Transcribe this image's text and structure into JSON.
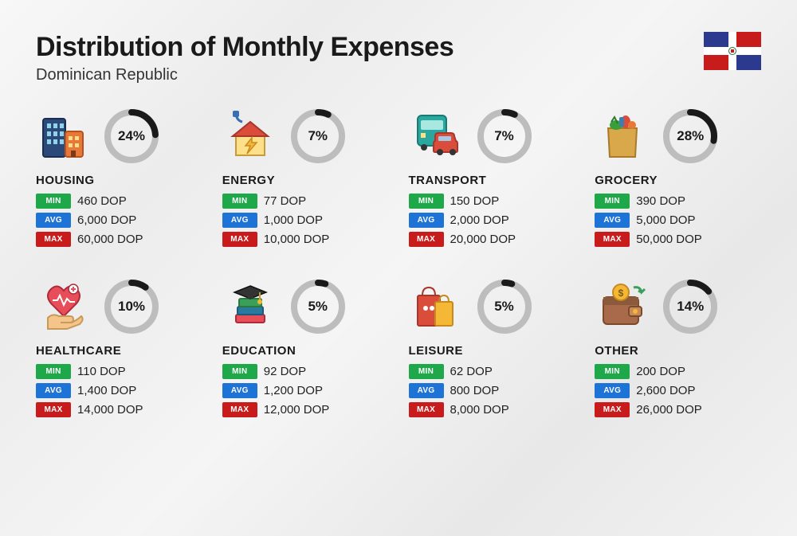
{
  "title": "Distribution of Monthly Expenses",
  "subtitle": "Dominican Republic",
  "currency": "DOP",
  "badge_labels": {
    "min": "MIN",
    "avg": "AVG",
    "max": "MAX"
  },
  "ring": {
    "radius": 30,
    "stroke_width": 8,
    "bg_color": "#bdbdbd",
    "fg_color": "#1a1a1a",
    "circumference": 188.5
  },
  "badge_colors": {
    "min": "#1fa84a",
    "avg": "#1e73d6",
    "max": "#c81c1c"
  },
  "flag": {
    "blue": "#2b3a8f",
    "red": "#c81c1c",
    "white": "#ffffff"
  },
  "categories": [
    {
      "key": "housing",
      "name": "HOUSING",
      "pct": 24,
      "min": "460",
      "avg": "6,000",
      "max": "60,000",
      "icon": "buildings"
    },
    {
      "key": "energy",
      "name": "ENERGY",
      "pct": 7,
      "min": "77",
      "avg": "1,000",
      "max": "10,000",
      "icon": "energy-house"
    },
    {
      "key": "transport",
      "name": "TRANSPORT",
      "pct": 7,
      "min": "150",
      "avg": "2,000",
      "max": "20,000",
      "icon": "bus-car"
    },
    {
      "key": "grocery",
      "name": "GROCERY",
      "pct": 28,
      "min": "390",
      "avg": "5,000",
      "max": "50,000",
      "icon": "grocery-bag"
    },
    {
      "key": "healthcare",
      "name": "HEALTHCARE",
      "pct": 10,
      "min": "110",
      "avg": "1,400",
      "max": "14,000",
      "icon": "heart-hand"
    },
    {
      "key": "education",
      "name": "EDUCATION",
      "pct": 5,
      "min": "92",
      "avg": "1,200",
      "max": "12,000",
      "icon": "grad-books"
    },
    {
      "key": "leisure",
      "name": "LEISURE",
      "pct": 5,
      "min": "62",
      "avg": "800",
      "max": "8,000",
      "icon": "shopping-bags"
    },
    {
      "key": "other",
      "name": "OTHER",
      "pct": 14,
      "min": "200",
      "avg": "2,600",
      "max": "26,000",
      "icon": "wallet"
    }
  ]
}
